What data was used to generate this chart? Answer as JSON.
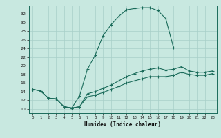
{
  "xlabel": "Humidex (Indice chaleur)",
  "bg_color": "#c8e8e0",
  "line_color": "#1a6b5a",
  "grid_color": "#a8cfc8",
  "xlim": [
    -0.5,
    23.5
  ],
  "ylim": [
    9,
    34
  ],
  "xticks": [
    0,
    1,
    2,
    3,
    4,
    5,
    6,
    7,
    8,
    9,
    10,
    11,
    12,
    13,
    14,
    15,
    16,
    17,
    18,
    19,
    20,
    21,
    22,
    23
  ],
  "yticks": [
    10,
    12,
    14,
    16,
    18,
    20,
    22,
    24,
    26,
    28,
    30,
    32
  ],
  "line1_x": [
    0,
    1,
    2,
    3,
    4,
    5,
    6,
    7,
    8,
    9,
    10,
    11,
    12,
    13,
    14,
    15,
    16,
    17,
    18
  ],
  "line1_y": [
    14.5,
    14.2,
    12.5,
    12.3,
    10.5,
    10.2,
    13.0,
    19.2,
    22.5,
    27.0,
    29.5,
    31.5,
    33.0,
    33.3,
    33.5,
    33.5,
    32.8,
    31.0,
    24.2
  ],
  "line2_x": [
    0,
    1,
    2,
    3,
    4,
    5,
    6,
    7,
    8,
    9,
    10,
    11,
    12,
    13,
    14,
    15,
    16,
    17,
    18,
    19,
    20,
    21,
    22,
    23
  ],
  "line2_y": [
    14.5,
    14.2,
    12.5,
    12.3,
    10.5,
    10.2,
    10.5,
    13.5,
    14.0,
    14.8,
    15.5,
    16.5,
    17.5,
    18.2,
    18.8,
    19.2,
    19.5,
    19.0,
    19.2,
    19.8,
    18.8,
    18.5,
    18.5,
    18.8
  ],
  "line3_x": [
    0,
    1,
    2,
    3,
    4,
    5,
    6,
    7,
    8,
    9,
    10,
    11,
    12,
    13,
    14,
    15,
    16,
    17,
    18,
    19,
    20,
    21,
    22,
    23
  ],
  "line3_y": [
    14.5,
    14.2,
    12.5,
    12.3,
    10.5,
    10.2,
    10.5,
    12.8,
    13.2,
    13.8,
    14.5,
    15.2,
    16.0,
    16.5,
    17.0,
    17.5,
    17.5,
    17.5,
    17.8,
    18.5,
    18.0,
    17.8,
    17.8,
    18.2
  ]
}
